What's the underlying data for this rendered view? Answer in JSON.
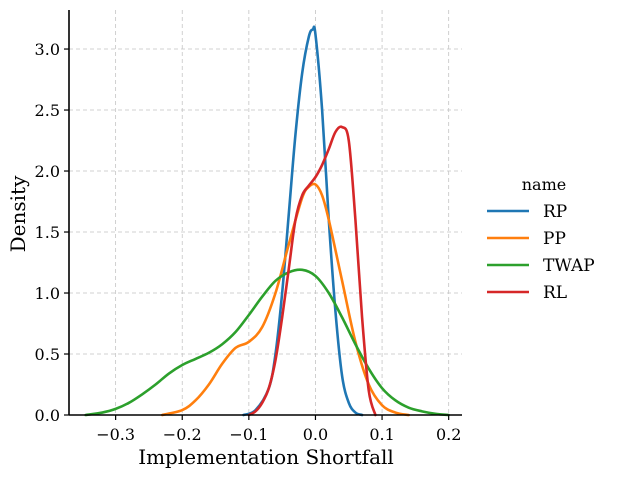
{
  "chart_data": {
    "type": "line",
    "subtype": "kde",
    "title": "",
    "xlabel": "Implementation Shortfall",
    "ylabel": "Density",
    "xlim": [
      -0.37,
      0.22
    ],
    "ylim": [
      0,
      3.32
    ],
    "x_ticks": [
      -0.3,
      -0.2,
      -0.1,
      0.0,
      0.1,
      0.2
    ],
    "x_tick_labels": [
      "−0.3",
      "−0.2",
      "−0.1",
      "0.0",
      "0.1",
      "0.2"
    ],
    "y_ticks": [
      0.0,
      0.5,
      1.0,
      1.5,
      2.0,
      2.5,
      3.0
    ],
    "y_tick_labels": [
      "0.0",
      "0.5",
      "1.0",
      "1.5",
      "2.0",
      "2.5",
      "3.0"
    ],
    "grid": true,
    "legend": {
      "title": "name",
      "position": "right"
    },
    "series": [
      {
        "name": "RP",
        "color": "#1f77b4",
        "x": [
          -0.108,
          -0.09,
          -0.07,
          -0.06,
          -0.05,
          -0.04,
          -0.03,
          -0.02,
          -0.01,
          -0.004,
          0.0,
          0.01,
          0.02,
          0.03,
          0.04,
          0.05,
          0.06,
          0.07
        ],
        "y": [
          0.0,
          0.04,
          0.22,
          0.5,
          1.0,
          1.65,
          2.3,
          2.8,
          3.1,
          3.16,
          3.12,
          2.5,
          1.6,
          0.85,
          0.32,
          0.1,
          0.02,
          0.0
        ]
      },
      {
        "name": "PP",
        "color": "#ff7f0e",
        "x": [
          -0.23,
          -0.2,
          -0.18,
          -0.16,
          -0.14,
          -0.12,
          -0.1,
          -0.08,
          -0.06,
          -0.04,
          -0.02,
          -0.01,
          0.0,
          0.01,
          0.02,
          0.04,
          0.06,
          0.08,
          0.1,
          0.12,
          0.14
        ],
        "y": [
          0.0,
          0.04,
          0.12,
          0.25,
          0.42,
          0.55,
          0.6,
          0.72,
          1.0,
          1.4,
          1.78,
          1.87,
          1.89,
          1.8,
          1.6,
          1.1,
          0.6,
          0.25,
          0.08,
          0.02,
          0.0
        ]
      },
      {
        "name": "TWAP",
        "color": "#2ca02c",
        "x": [
          -0.345,
          -0.32,
          -0.3,
          -0.28,
          -0.26,
          -0.24,
          -0.22,
          -0.2,
          -0.18,
          -0.16,
          -0.14,
          -0.12,
          -0.1,
          -0.08,
          -0.06,
          -0.04,
          -0.02,
          0.0,
          0.02,
          0.04,
          0.06,
          0.08,
          0.1,
          0.12,
          0.14,
          0.16,
          0.18,
          0.2
        ],
        "y": [
          0.0,
          0.02,
          0.05,
          0.1,
          0.17,
          0.25,
          0.34,
          0.41,
          0.46,
          0.51,
          0.58,
          0.68,
          0.82,
          0.97,
          1.1,
          1.17,
          1.19,
          1.14,
          1.0,
          0.8,
          0.58,
          0.38,
          0.22,
          0.12,
          0.06,
          0.03,
          0.01,
          0.0
        ]
      },
      {
        "name": "RL",
        "color": "#d62728",
        "x": [
          -0.1,
          -0.09,
          -0.08,
          -0.07,
          -0.06,
          -0.05,
          -0.04,
          -0.03,
          -0.02,
          -0.01,
          0.0,
          0.01,
          0.02,
          0.03,
          0.04,
          0.05,
          0.06,
          0.07,
          0.08,
          0.09
        ],
        "y": [
          0.0,
          0.03,
          0.1,
          0.22,
          0.45,
          0.8,
          1.2,
          1.6,
          1.8,
          1.88,
          1.95,
          2.05,
          2.18,
          2.32,
          2.36,
          2.25,
          1.6,
          0.8,
          0.2,
          0.0
        ]
      }
    ]
  }
}
